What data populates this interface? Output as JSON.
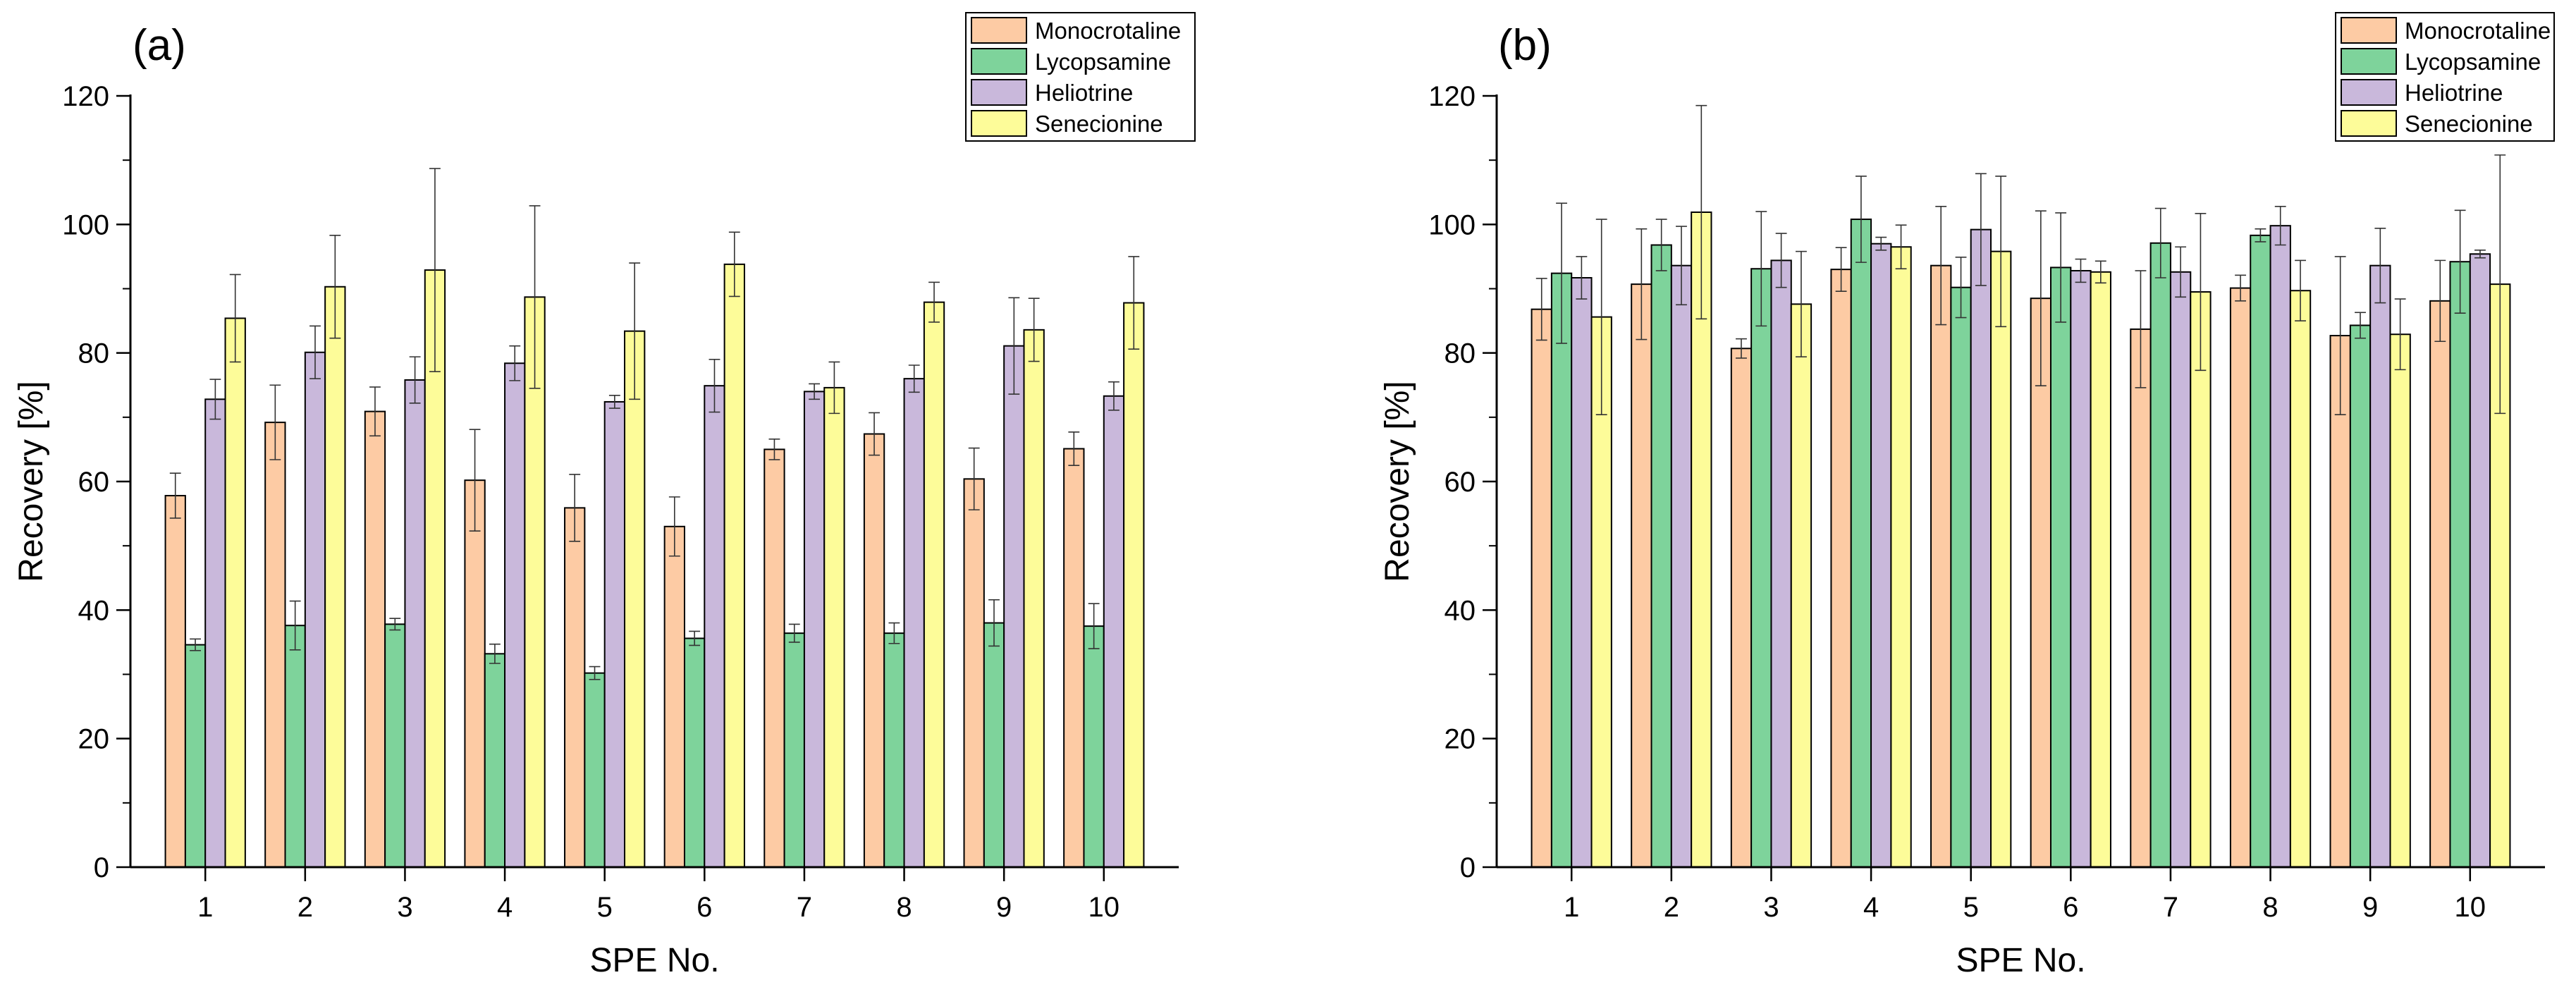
{
  "colors": {
    "Monocrotaline": "#fdcba4",
    "Lycopsamine": "#7ed39b",
    "Heliotrine": "#c9b8db",
    "Senecionine": "#fdfc99"
  },
  "chart_data": [
    {
      "type": "bar",
      "panel_label": "(a)",
      "xlabel": "SPE No.",
      "ylabel": "Recovery [%]",
      "ylim": [
        0,
        120
      ],
      "y_ticks": [
        0,
        20,
        40,
        60,
        80,
        100,
        120
      ],
      "categories": [
        "1",
        "2",
        "3",
        "4",
        "5",
        "6",
        "7",
        "8",
        "9",
        "10"
      ],
      "legend_position": "top-right",
      "series": [
        {
          "name": "Monocrotaline",
          "values": [
            57.8,
            69.2,
            70.9,
            60.2,
            55.9,
            53.0,
            65.0,
            67.4,
            60.4,
            65.1
          ],
          "errors": [
            3.5,
            5.8,
            3.8,
            7.9,
            5.2,
            4.6,
            1.6,
            3.3,
            4.8,
            2.6
          ]
        },
        {
          "name": "Lycopsamine",
          "values": [
            34.6,
            37.6,
            37.8,
            33.2,
            30.2,
            35.6,
            36.4,
            36.4,
            38.0,
            37.5
          ],
          "errors": [
            0.9,
            3.8,
            0.9,
            1.5,
            1.0,
            1.1,
            1.4,
            1.6,
            3.6,
            3.5
          ]
        },
        {
          "name": "Heliotrine",
          "values": [
            72.8,
            80.1,
            75.8,
            78.4,
            72.4,
            74.9,
            74.0,
            76.0,
            81.1,
            73.3
          ],
          "errors": [
            3.1,
            4.1,
            3.6,
            2.7,
            1.0,
            4.1,
            1.2,
            2.1,
            7.5,
            2.2
          ]
        },
        {
          "name": "Senecionine",
          "values": [
            85.4,
            90.3,
            92.9,
            88.7,
            83.4,
            93.8,
            74.6,
            87.9,
            83.6,
            87.8
          ],
          "errors": [
            6.8,
            8.0,
            15.8,
            14.2,
            10.6,
            5.0,
            4.0,
            3.1,
            4.9,
            7.2
          ]
        }
      ]
    },
    {
      "type": "bar",
      "panel_label": "(b)",
      "xlabel": "SPE No.",
      "ylabel": "Recovery [%]",
      "ylim": [
        0,
        120
      ],
      "y_ticks": [
        0,
        20,
        40,
        60,
        80,
        100,
        120
      ],
      "categories": [
        "1",
        "2",
        "3",
        "4",
        "5",
        "6",
        "7",
        "8",
        "9",
        "10"
      ],
      "legend_position": "top-right",
      "series": [
        {
          "name": "Monocrotaline",
          "values": [
            86.8,
            90.7,
            80.7,
            93.0,
            93.6,
            88.5,
            83.7,
            90.1,
            82.7,
            88.1
          ],
          "errors": [
            4.8,
            8.6,
            1.5,
            3.4,
            9.2,
            13.6,
            9.1,
            2.0,
            12.3,
            6.3
          ]
        },
        {
          "name": "Lycopsamine",
          "values": [
            92.4,
            96.8,
            93.1,
            100.8,
            90.2,
            93.3,
            97.1,
            98.3,
            84.3,
            94.2
          ],
          "errors": [
            10.9,
            4.0,
            8.9,
            6.7,
            4.7,
            8.5,
            5.4,
            1.0,
            2.0,
            8.0
          ]
        },
        {
          "name": "Heliotrine",
          "values": [
            91.7,
            93.6,
            94.4,
            97.0,
            99.2,
            92.8,
            92.6,
            99.8,
            93.6,
            95.4
          ],
          "errors": [
            3.3,
            6.1,
            4.2,
            1.0,
            8.7,
            1.8,
            3.9,
            3.0,
            5.8,
            0.6
          ]
        },
        {
          "name": "Senecionine",
          "values": [
            85.6,
            101.9,
            87.6,
            96.5,
            95.8,
            92.6,
            89.5,
            89.7,
            82.9,
            90.7
          ],
          "errors": [
            15.2,
            16.6,
            8.2,
            3.4,
            11.7,
            1.7,
            12.2,
            4.7,
            5.5,
            20.1
          ]
        }
      ]
    }
  ]
}
